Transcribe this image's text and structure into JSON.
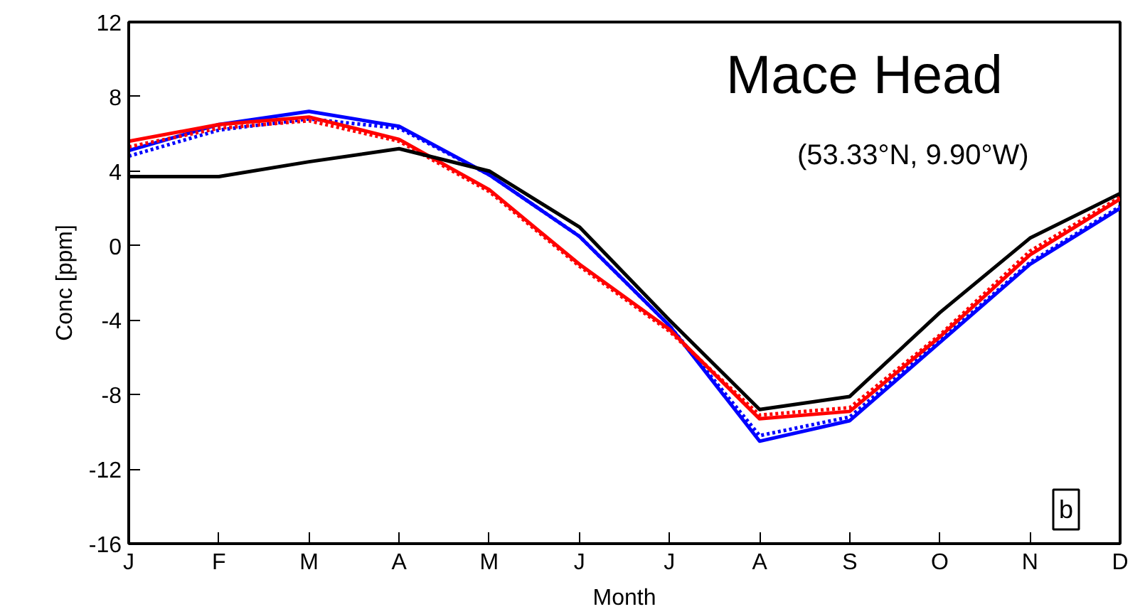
{
  "chart_data": {
    "type": "line",
    "xlabel": "Month",
    "ylabel": "Conc [ppm]",
    "categories": [
      "J",
      "F",
      "M",
      "A",
      "M",
      "J",
      "J",
      "A",
      "S",
      "O",
      "N",
      "D"
    ],
    "ylim": [
      -16,
      12
    ],
    "yticks": [
      -16,
      -12,
      -8,
      -4,
      0,
      4,
      8,
      12
    ],
    "grid": false,
    "marker": "none",
    "annotations": [
      "Mace Head",
      "(53.33°N,  9.90°W)",
      "b"
    ],
    "series": [
      {
        "color": "#0000ff",
        "line_style": "dotted",
        "values": [
          4.8,
          6.2,
          6.8,
          6.3,
          3.8,
          0.5,
          -4.3,
          -10.2,
          -9.2,
          -5.1,
          -0.9,
          2.1
        ]
      },
      {
        "color": "#0000ff",
        "line_style": "solid",
        "values": [
          5.1,
          6.5,
          7.2,
          6.4,
          3.8,
          0.5,
          -4.3,
          -10.5,
          -9.4,
          -5.2,
          -1.0,
          2.0
        ]
      },
      {
        "color": "#ff0000",
        "line_style": "dotted",
        "values": [
          5.3,
          6.3,
          6.7,
          5.6,
          2.9,
          -1.1,
          -4.6,
          -9.1,
          -8.7,
          -4.8,
          -0.3,
          2.6
        ]
      },
      {
        "color": "#ff0000",
        "line_style": "solid",
        "values": [
          5.6,
          6.5,
          6.9,
          5.7,
          3.0,
          -1.0,
          -4.5,
          -9.3,
          -8.9,
          -4.9,
          -0.5,
          2.5
        ]
      },
      {
        "color": "#000000",
        "line_style": "solid",
        "values": [
          3.7,
          3.7,
          4.5,
          5.2,
          4.0,
          1.0,
          -4.0,
          -8.8,
          -8.1,
          -3.6,
          0.4,
          2.8
        ]
      }
    ]
  }
}
